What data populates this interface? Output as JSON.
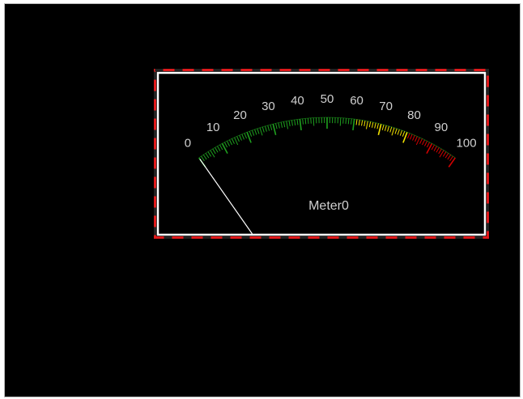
{
  "meter": {
    "name": "Meter0",
    "value": 0,
    "min": 0,
    "max": 100,
    "scale_labels": [
      "0",
      "10",
      "20",
      "30",
      "40",
      "50",
      "60",
      "70",
      "80",
      "90",
      "100"
    ],
    "zones": [
      {
        "from": 0,
        "to": 60,
        "color": "#1fa01f"
      },
      {
        "from": 60,
        "to": 80,
        "color": "#f2e200"
      },
      {
        "from": 80,
        "to": 100,
        "color": "#d20000"
      }
    ],
    "colors": {
      "background": "#000000",
      "frame_outer": "#e0191b",
      "frame_dash": "#222222",
      "frame_inner": "#ffffff",
      "labels": "#d0d0d0",
      "needle": "#ffffff"
    }
  }
}
